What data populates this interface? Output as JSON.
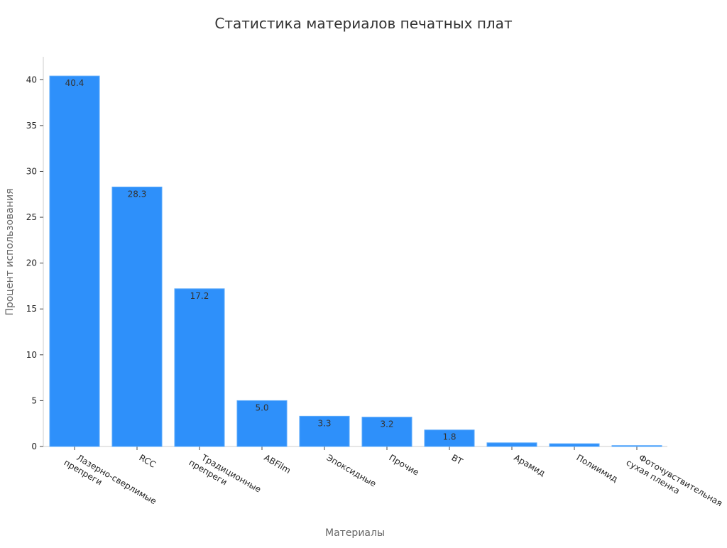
{
  "chart_data": {
    "type": "bar",
    "title": "Статистика материалов печатных плат",
    "xlabel": "Материалы",
    "ylabel": "Процент использования",
    "categories": [
      [
        "Лазерно-сверлимые",
        "препреги"
      ],
      [
        "RCC"
      ],
      [
        "Традиционные",
        "препреги"
      ],
      [
        "ABFilm"
      ],
      [
        "Эпоксидные"
      ],
      [
        "Прочие"
      ],
      [
        "BT"
      ],
      [
        "Арамид"
      ],
      [
        "Полиимид"
      ],
      [
        "Фоточувствительная",
        "сухая пленка"
      ]
    ],
    "values": [
      40.4,
      28.3,
      17.2,
      5.0,
      3.3,
      3.2,
      1.8,
      0.4,
      0.3,
      0.1
    ],
    "data_labels": [
      "40.4",
      "28.3",
      "17.2",
      "5.0",
      "3.3",
      "3.2",
      "1.8",
      "",
      "",
      ""
    ],
    "ylim": [
      0,
      42.5
    ],
    "yticks": [
      0,
      5,
      10,
      15,
      20,
      25,
      30,
      35,
      40
    ],
    "bar_color": "#2e90fa",
    "bar_edge_color": "#5aa9fb",
    "grid": false,
    "legend": "none"
  }
}
